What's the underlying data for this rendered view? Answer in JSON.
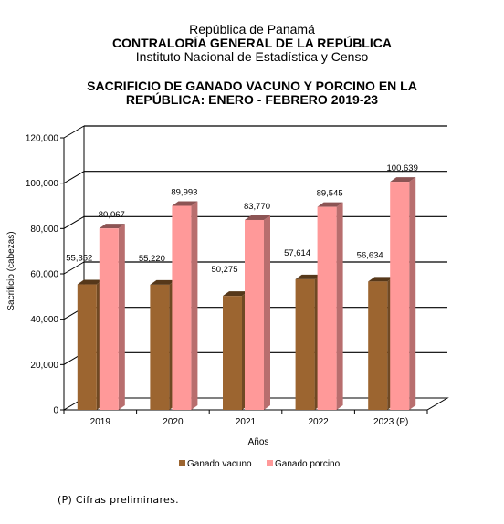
{
  "header": {
    "line1": "República de Panamá",
    "line2": "CONTRALORÍA GENERAL DE LA REPÚBLICA",
    "line3": "Instituto Nacional de Estadística y Censo"
  },
  "chart_data": {
    "type": "bar",
    "title": "SACRIFICIO DE GANADO VACUNO Y PORCINO EN LA REPÚBLICA: ENERO - FEBRERO 2019-23",
    "title_lines": [
      "SACRIFICIO DE GANADO VACUNO Y PORCINO EN LA",
      "REPÚBLICA: ENERO - FEBRERO 2019-23"
    ],
    "categories": [
      "2019",
      "2020",
      "2021",
      "2022",
      "2023 (P)"
    ],
    "series": [
      {
        "name": "Ganado vacuno",
        "values": [
          55352,
          55220,
          50275,
          57614,
          56634
        ],
        "labels": [
          "55,352",
          "55,220",
          "50,275",
          "57,614",
          "56,634"
        ],
        "color": "#9c6530"
      },
      {
        "name": "Ganado porcino",
        "values": [
          80067,
          89993,
          83770,
          89545,
          100639
        ],
        "labels": [
          "80,067",
          "89,993",
          "83,770",
          "89,545",
          "100,639"
        ],
        "color": "#ff9999"
      }
    ],
    "xlabel": "Años",
    "ylabel": "Sacrificio (cabezas)",
    "ylim": [
      0,
      120000
    ],
    "yticks": [
      0,
      20000,
      40000,
      60000,
      80000,
      100000,
      120000
    ],
    "ytick_labels": [
      "0",
      "20,000",
      "40,000",
      "60,000",
      "80,000",
      "100,000",
      "120,000"
    ],
    "grid": true,
    "legend": "bottom"
  },
  "footnote": "(P) Cifras preliminares."
}
